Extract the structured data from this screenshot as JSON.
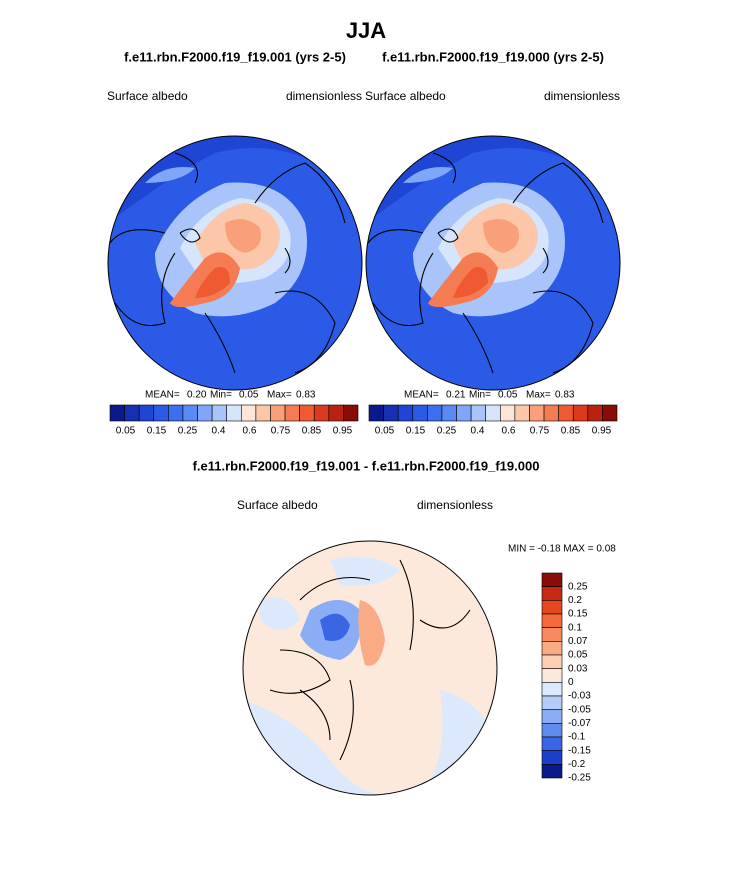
{
  "title": "JJA",
  "panels": [
    {
      "subtitle": "f.e11.rbn.F2000.f19_f19.001 (yrs 2-5)",
      "left_label": "Surface albedo",
      "right_label": "dimensionless",
      "stats": [
        "MEAN=",
        "0.20",
        "Min=",
        "0.05",
        "Max=",
        "0.83"
      ]
    },
    {
      "subtitle": "f.e11.rbn.F2000.f19_f19.000 (yrs 2-5)",
      "left_label": "Surface albedo",
      "right_label": "dimensionless",
      "stats": [
        "MEAN=",
        "0.21",
        "Min=",
        "0.05",
        "Max=",
        "0.83"
      ]
    }
  ],
  "colorbar": {
    "colors": [
      "#0a1a8c",
      "#1530b0",
      "#1f45d4",
      "#2a5ae6",
      "#3c6ff0",
      "#5a8af5",
      "#7fa6f8",
      "#a9c4fa",
      "#d6e4fc",
      "#fde6d6",
      "#fcc6a8",
      "#f9a07a",
      "#f57b52",
      "#ef5a33",
      "#dc3a1e",
      "#b8220f",
      "#8a0c06"
    ],
    "labels": [
      "0.05",
      "0.15",
      "0.25",
      "0.4",
      "0.6",
      "0.75",
      "0.85",
      "0.95"
    ]
  },
  "diff": {
    "title": "f.e11.rbn.F2000.f19_f19.001 - f.e11.rbn.F2000.f19_f19.000",
    "left_label": "Surface albedo",
    "right_label": "dimensionless",
    "stats": "MIN =  -0.18 MAX =   0.08",
    "colorbar": {
      "colors": [
        "#8a0c06",
        "#c42a14",
        "#e5471f",
        "#f56a3a",
        "#f78a5e",
        "#f9ab86",
        "#fcd0b4",
        "#fde9dc",
        "#dce8fb",
        "#b3cdf8",
        "#8badf5",
        "#5f8cf0",
        "#3a66e6",
        "#1c3fc8",
        "#0a1a8c"
      ],
      "labels": [
        "0.25",
        "0.2",
        "0.15",
        "0.1",
        "0.07",
        "0.05",
        "0.03",
        "0",
        "-0.03",
        "-0.05",
        "-0.07",
        "-0.1",
        "-0.15",
        "-0.2",
        "-0.25"
      ]
    }
  }
}
